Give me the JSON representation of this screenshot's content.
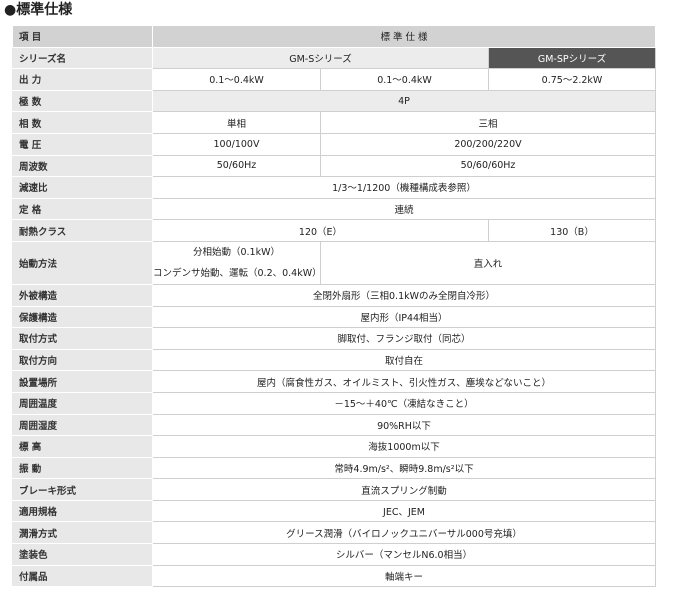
{
  "title": "●標準仕様",
  "table": {
    "header": [
      "項 目",
      "標 準 仕 様"
    ],
    "rows": [
      {
        "label": "シリーズ名",
        "cells": [
          "GM-Sシリーズ",
          "GM-SPシリーズ"
        ]
      },
      {
        "label": "出 力",
        "cells": [
          "0.1～0.4kW",
          "0.1～0.4kW",
          "0.75～2.2kW"
        ]
      },
      {
        "label": "極 数",
        "cells": [
          "4P"
        ]
      },
      {
        "label": "相 数",
        "cells": [
          "単相",
          "三相"
        ]
      },
      {
        "label": "電 圧",
        "cells": [
          "100/100V",
          "200/200/220V"
        ]
      },
      {
        "label": "周波数",
        "cells": [
          "50/60Hz",
          "50/60/60Hz"
        ]
      },
      {
        "label": "減速比",
        "cells": [
          "1/3～1/1200（機種構成表参照）"
        ]
      },
      {
        "label": "定 格",
        "cells": [
          "連続"
        ]
      },
      {
        "label": "耐熱クラス",
        "cells": [
          "120（E）",
          "130（B）"
        ]
      },
      {
        "label": "始動方法",
        "cells": [
          [
            "分相始動（0.1kW）",
            "コンデンサ始動、運転（0.2、0.4kW）"
          ],
          "直入れ"
        ]
      },
      {
        "label": "外被構造",
        "cells": [
          "全閉外扇形（三相0.1kWのみ全閉自冷形）"
        ]
      },
      {
        "label": "保護構造",
        "cells": [
          "屋内形（IP44相当）"
        ]
      },
      {
        "label": "取付方式",
        "cells": [
          "脚取付、フランジ取付（同芯）"
        ]
      },
      {
        "label": "取付方向",
        "cells": [
          "取付自在"
        ]
      },
      {
        "label": "設置場所",
        "cells": [
          "屋内（腐食性ガス、オイルミスト、引火性ガス、塵埃などないこと）"
        ]
      },
      {
        "label": "周囲温度",
        "cells": [
          "－15～＋40℃（凍結なきこと）"
        ]
      },
      {
        "label": "周囲湿度",
        "cells": [
          "90%RH以下"
        ]
      },
      {
        "label": "標 高",
        "cells": [
          "海抜1000m以下"
        ]
      },
      {
        "label": "振 動",
        "cells": [
          "常時4.9m/s²、瞬時9.8m/s²以下"
        ]
      },
      {
        "label": "ブレーキ形式",
        "cells": [
          "直流スプリング制動"
        ]
      },
      {
        "label": "適用規格",
        "cells": [
          "JEC、JEM"
        ]
      },
      {
        "label": "潤滑方式",
        "cells": [
          "グリース潤滑（バイロノックユニバーサル000号充填）"
        ]
      },
      {
        "label": "塗装色",
        "cells": [
          "シルバー（マンセルN6.0相当）"
        ]
      },
      {
        "label": "付属品",
        "cells": [
          "軸端キー"
        ]
      }
    ]
  }
}
